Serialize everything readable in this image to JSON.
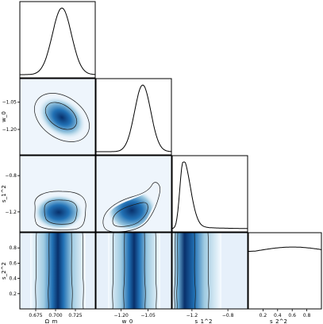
{
  "chart_data": {
    "type": "corner",
    "parameters": [
      {
        "id": "om",
        "label": "Ω_m",
        "range": [
          0.655,
          0.75
        ],
        "ticks": [
          0.675,
          0.7,
          0.725
        ],
        "tick_labels": [
          "0.675",
          "0.700",
          "0.725"
        ],
        "posterior_mean": 0.708,
        "posterior_sd": 0.012
      },
      {
        "id": "w0",
        "label": "w_0",
        "range": [
          -1.34,
          -0.92
        ],
        "ticks": [
          -1.2,
          -1.05
        ],
        "tick_labels": [
          "−1.20",
          "−1.05"
        ],
        "posterior_mean": -1.08,
        "posterior_sd": 0.045
      },
      {
        "id": "s1",
        "label": "s_1^2",
        "range": [
          -1.42,
          -0.58
        ],
        "ticks": [
          -1.2,
          -0.8
        ],
        "tick_labels": [
          "−1.2",
          "−0.8"
        ],
        "posterior_mode": -1.3
      },
      {
        "id": "s2",
        "label": "s_2^2",
        "range": [
          0.0,
          1.0
        ],
        "ticks": [
          0.2,
          0.4,
          0.6,
          0.8
        ],
        "tick_labels": [
          "0.2",
          "0.4",
          "0.6",
          "0.8"
        ],
        "posterior": "approximately uniform"
      }
    ],
    "colormap": {
      "low": "#f7fbff",
      "high": "#08306b",
      "mid": "#4a90c8"
    },
    "contour_color": "#1a1a1a"
  }
}
